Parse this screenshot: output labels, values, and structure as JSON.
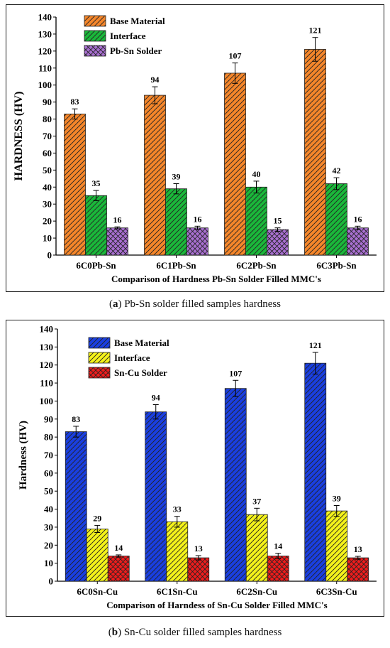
{
  "captions": [
    {
      "letter": "a",
      "text": "Pb-Sn solder filled samples hardness"
    },
    {
      "letter": "b",
      "text": "Sn-Cu solder filled samples hardness"
    }
  ],
  "chart_data": [
    {
      "type": "bar",
      "ylabel": "HARDNESS (HV)",
      "xlabel": "Comparison of Hardness Pb-Sn Solder Filled MMC's",
      "categories": [
        "6C0Pb-Sn",
        "6C1Pb-Sn",
        "6C2Pb-Sn",
        "6C3Pb-Sn"
      ],
      "ylim": [
        0,
        140
      ],
      "yticks": [
        0,
        10,
        20,
        30,
        40,
        50,
        60,
        70,
        80,
        90,
        100,
        110,
        120,
        130,
        140
      ],
      "legend_position": "top-left",
      "series": [
        {
          "name": "Base Material",
          "values": [
            83,
            94,
            107,
            121
          ],
          "errors": [
            3,
            5,
            6,
            7
          ],
          "color": "#f5862a",
          "hatch": "diag"
        },
        {
          "name": "Interface",
          "values": [
            35,
            39,
            40,
            42
          ],
          "errors": [
            3,
            3,
            3.5,
            3.5
          ],
          "color": "#1ab83a",
          "hatch": "diag"
        },
        {
          "name": "Pb-Sn Solder",
          "values": [
            16,
            16,
            15,
            16
          ],
          "errors": [
            0.6,
            1,
            1,
            1
          ],
          "color": "#a86fd0",
          "hatch": "cross"
        }
      ]
    },
    {
      "type": "bar",
      "ylabel": "Hardness (HV)",
      "xlabel": "Comparison of Harndess of Sn-Cu Solder Filled MMC's",
      "categories": [
        "6C0Sn-Cu",
        "6C1Sn-Cu",
        "6C2Sn-Cu",
        "6C3Sn-Cu"
      ],
      "ylim": [
        0,
        140
      ],
      "yticks": [
        0,
        10,
        20,
        30,
        40,
        50,
        60,
        70,
        80,
        90,
        100,
        110,
        120,
        130,
        140
      ],
      "legend_position": "top-left",
      "series": [
        {
          "name": "Base Material",
          "values": [
            83,
            94,
            107,
            121
          ],
          "errors": [
            3,
            4,
            4.5,
            6
          ],
          "color": "#1a3fe0",
          "hatch": "diag"
        },
        {
          "name": "Interface",
          "values": [
            29,
            33,
            37,
            39
          ],
          "errors": [
            2,
            3,
            3.5,
            3
          ],
          "color": "#f4f21a",
          "hatch": "diag"
        },
        {
          "name": "Sn-Cu Solder",
          "values": [
            14,
            13,
            14,
            13
          ],
          "errors": [
            0.6,
            1.2,
            1.5,
            0.8
          ],
          "color": "#ee1c1c",
          "hatch": "cross"
        }
      ]
    }
  ]
}
